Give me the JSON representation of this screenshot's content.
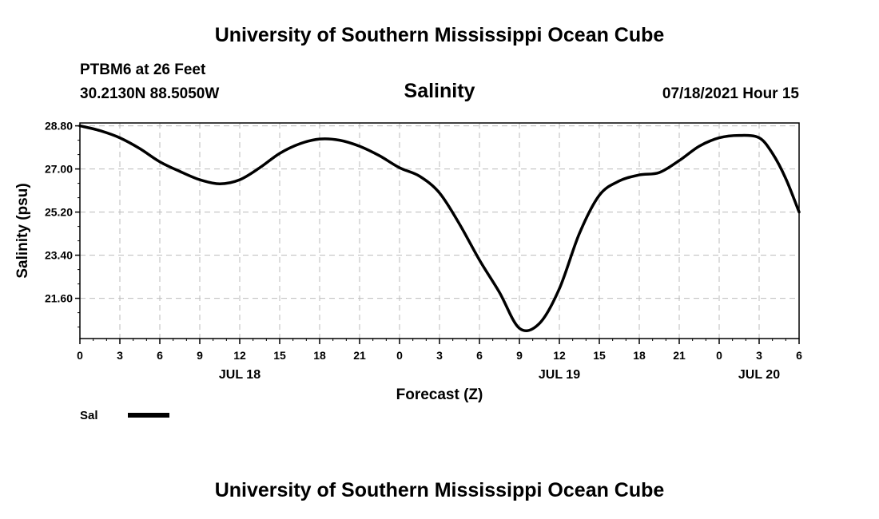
{
  "header": {
    "top_title": "University of Southern Mississippi Ocean Cube",
    "station": "PTBM6 at 26 Feet",
    "coords": "30.2130N  88.5050W",
    "chart_title": "Salinity",
    "datetime": "07/18/2021 Hour 15",
    "bottom_title": "University of Southern Mississippi Ocean Cube"
  },
  "chart_data": {
    "type": "line",
    "title": "Salinity",
    "xlabel": "Forecast (Z)",
    "ylabel": "Salinity (psu)",
    "ylim": [
      19.92,
      28.92
    ],
    "xlim": [
      0,
      54
    ],
    "x_tick_labels": [
      "0",
      "3",
      "6",
      "9",
      "12",
      "15",
      "18",
      "21",
      "0",
      "3",
      "6",
      "9",
      "12",
      "15",
      "18",
      "21",
      "0",
      "3",
      "6"
    ],
    "y_ticks": [
      "28.80",
      "27.00",
      "25.20",
      "23.40",
      "21.60"
    ],
    "day_labels": [
      {
        "text": "JUL 18",
        "x": 12
      },
      {
        "text": "JUL 19",
        "x": 36
      },
      {
        "text": "JUL 20",
        "x": 51
      }
    ],
    "grid": true,
    "series": [
      {
        "name": "Sal",
        "color": "#000000",
        "x": [
          0,
          1.5,
          3,
          4.5,
          6,
          7.5,
          9,
          10.5,
          12,
          13.5,
          15,
          16.5,
          18,
          19.5,
          21,
          22.5,
          24,
          25.5,
          27,
          28.5,
          30,
          31.5,
          33,
          34.5,
          36,
          37.5,
          39,
          40.5,
          42,
          43.5,
          45,
          46.5,
          48,
          49.5,
          51,
          52,
          53,
          54
        ],
        "values": [
          28.8,
          28.6,
          28.3,
          27.85,
          27.3,
          26.9,
          26.55,
          26.38,
          26.55,
          27.05,
          27.65,
          28.05,
          28.25,
          28.2,
          27.95,
          27.55,
          27.05,
          26.7,
          26.0,
          24.7,
          23.2,
          21.85,
          20.35,
          20.55,
          22.0,
          24.3,
          25.9,
          26.5,
          26.75,
          26.85,
          27.35,
          27.95,
          28.3,
          28.4,
          28.3,
          27.65,
          26.6,
          25.2
        ]
      }
    ],
    "legend": [
      {
        "label": "Sal",
        "color": "#000000"
      }
    ],
    "legend_position": "bottom-left"
  }
}
